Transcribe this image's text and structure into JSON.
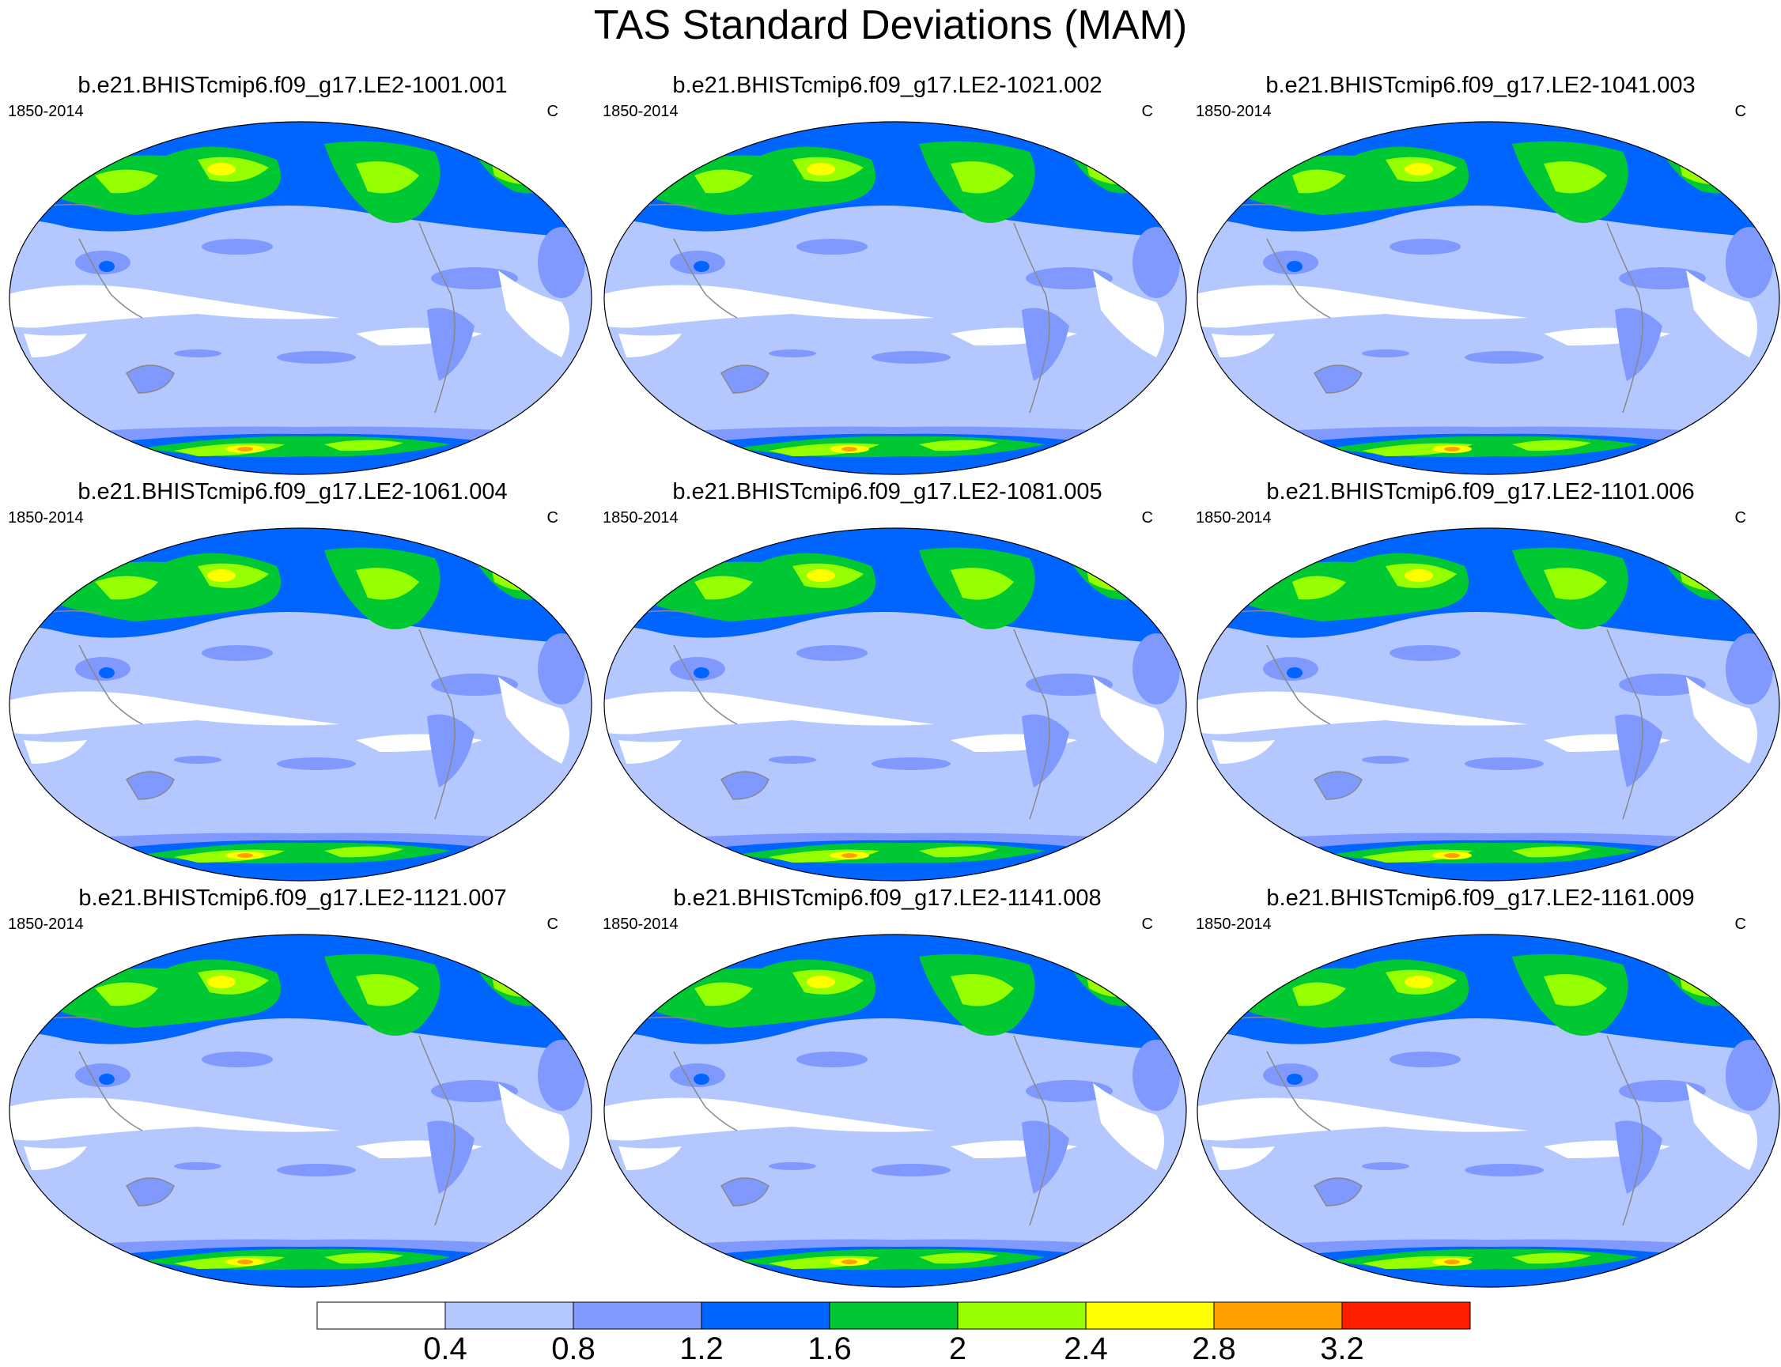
{
  "title": "TAS Standard Deviations (MAM)",
  "panels": [
    {
      "title": "b.e21.BHISTcmip6.f09_g17.LE2-1001.001",
      "left_label": "1850-2014",
      "right_label": "C"
    },
    {
      "title": "b.e21.BHISTcmip6.f09_g17.LE2-1021.002",
      "left_label": "1850-2014",
      "right_label": "C"
    },
    {
      "title": "b.e21.BHISTcmip6.f09_g17.LE2-1041.003",
      "left_label": "1850-2014",
      "right_label": "C"
    },
    {
      "title": "b.e21.BHISTcmip6.f09_g17.LE2-1061.004",
      "left_label": "1850-2014",
      "right_label": "C"
    },
    {
      "title": "b.e21.BHISTcmip6.f09_g17.LE2-1081.005",
      "left_label": "1850-2014",
      "right_label": "C"
    },
    {
      "title": "b.e21.BHISTcmip6.f09_g17.LE2-1101.006",
      "left_label": "1850-2014",
      "right_label": "C"
    },
    {
      "title": "b.e21.BHISTcmip6.f09_g17.LE2-1121.007",
      "left_label": "1850-2014",
      "right_label": "C"
    },
    {
      "title": "b.e21.BHISTcmip6.f09_g17.LE2-1141.008",
      "left_label": "1850-2014",
      "right_label": "C"
    },
    {
      "title": "b.e21.BHISTcmip6.f09_g17.LE2-1161.009",
      "left_label": "1850-2014",
      "right_label": "C"
    }
  ],
  "colorbar": {
    "labels": [
      "0.4",
      "0.8",
      "1.2",
      "1.6",
      "2",
      "2.4",
      "2.8",
      "3.2"
    ],
    "colors": [
      "#ffffff",
      "#b4c8ff",
      "#7f99ff",
      "#0064ff",
      "#00c832",
      "#96ff00",
      "#ffff00",
      "#ffa000",
      "#ff1e00"
    ]
  }
}
